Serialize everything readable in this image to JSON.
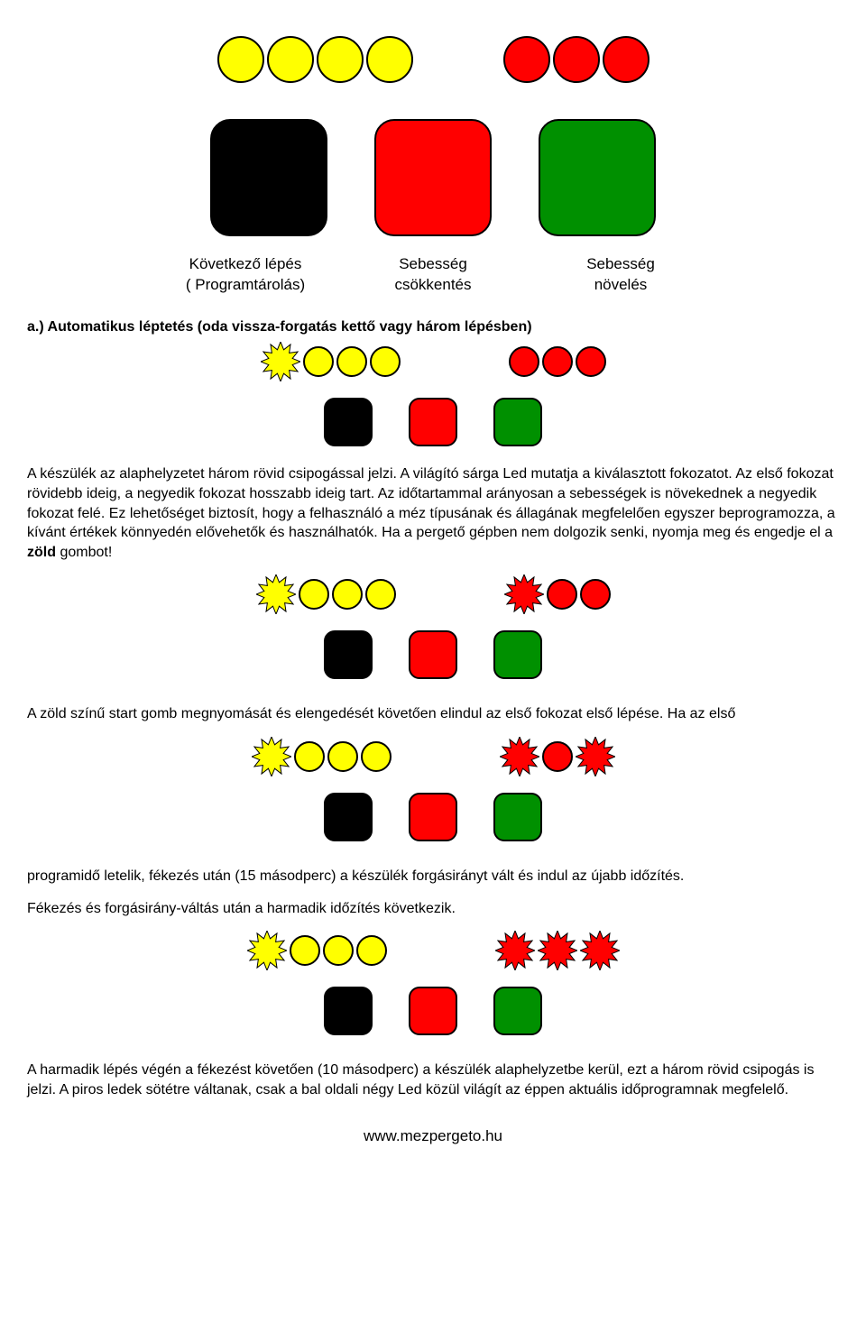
{
  "colors": {
    "yellow": "#ffff00",
    "red": "#ff0000",
    "black": "#000000",
    "green": "#008000",
    "green_btn": "#009000",
    "outline": "#000000",
    "white": "#ffffff"
  },
  "top": {
    "leds": {
      "left_group": [
        "#ffff00",
        "#ffff00",
        "#ffff00",
        "#ffff00"
      ],
      "right_group": [
        "#ff0000",
        "#ff0000",
        "#ff0000"
      ],
      "led_diameter": 52,
      "gap_between_groups": 100
    },
    "buttons": {
      "colors": [
        "#000000",
        "#ff0000",
        "#009000"
      ],
      "size": 130,
      "radius": 22
    },
    "labels": {
      "col1_line1": "Következő lépés",
      "col1_line2": "( Programtárolás)",
      "col2_line1": "Sebesség",
      "col2_line2": "csökkentés",
      "col3_line1": "Sebesség",
      "col3_line2": "növelés"
    }
  },
  "section_a": {
    "heading": "a.) Automatikus léptetés (oda vissza-forgatás kettő vagy három lépésben)",
    "leds": {
      "left_starburst_index": 0,
      "left_group": [
        "#ffff00",
        "#ffff00",
        "#ffff00",
        "#ffff00"
      ],
      "right_group": [
        "#ff0000",
        "#ff0000",
        "#ff0000"
      ]
    },
    "buttons": [
      "#000000",
      "#ff0000",
      "#009000"
    ]
  },
  "para1_pre": "A készülék az alaphelyzetet három rövid csipogással jelzi. A világító sárga Led mutatja a kiválasztott fokozatot. Az első fokozat rövidebb ideig, a negyedik fokozat hosszabb ideig tart. Az időtartammal arányosan a sebességek is növekednek a negyedik fokozat felé. Ez lehetőséget biztosít, hogy a felhasználó a méz típusának és állagának megfelelően egyszer beprogramozza, a kívánt értékek könnyedén elővehetők és használhatók. Ha a pergető gépben nem dolgozik senki, nyomja meg és engedje el a ",
  "para1_bold": "zöld",
  "para1_post": " gombot!",
  "panel2": {
    "leds_left": [
      "#ffff00",
      "#ffff00",
      "#ffff00",
      "#ffff00"
    ],
    "leds_left_star_index": 0,
    "leds_right": [
      "#ff0000",
      "#ff0000",
      "#ff0000"
    ],
    "leds_right_star_index": 0,
    "buttons": [
      "#000000",
      "#ff0000",
      "#009000"
    ]
  },
  "para2": "A zöld színű start gomb megnyomását és elengedését követően elindul az első fokozat első lépése. Ha az első",
  "panel3": {
    "leds_left": [
      "#ffff00",
      "#ffff00",
      "#ffff00",
      "#ffff00"
    ],
    "leds_left_star_index": 0,
    "leds_right": [
      "#ff0000",
      "#ff0000",
      "#ff0000"
    ],
    "leds_right_star_indices": [
      0,
      2
    ],
    "buttons": [
      "#000000",
      "#ff0000",
      "#009000"
    ]
  },
  "para3": "programidő letelik, fékezés után (15 másodperc) a készülék forgásirányt vált és indul az újabb időzítés.",
  "para4": "Fékezés és forgásirány-váltás után a harmadik időzítés következik.",
  "panel4": {
    "leds_left": [
      "#ffff00",
      "#ffff00",
      "#ffff00",
      "#ffff00"
    ],
    "leds_left_star_index": 0,
    "leds_right": [
      "#ff0000",
      "#ff0000",
      "#ff0000"
    ],
    "leds_right_star_indices": [
      0,
      1,
      2
    ],
    "buttons": [
      "#000000",
      "#ff0000",
      "#009000"
    ]
  },
  "para5": "A harmadik lépés végén a fékezést követően (10 másodperc) a készülék alaphelyzetbe kerül, ezt a három rövid csipogás is jelzi. A piros ledek sötétre váltanak, csak a bal oldali négy Led közül világít az éppen aktuális időprogramnak megfelelő.",
  "footer": "www.mezpergeto.hu",
  "styling": {
    "body_width": 960,
    "font_family": "Arial",
    "font_size": 16,
    "small_led_diameter": 34,
    "small_button_size": 54,
    "small_button_radius": 12,
    "starburst_rays": 12
  }
}
